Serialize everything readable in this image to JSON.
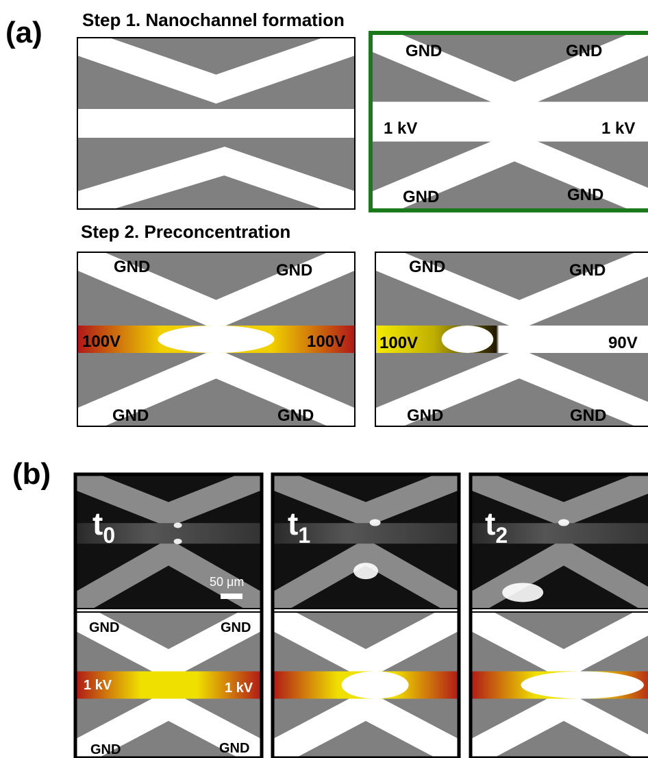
{
  "panel_a": {
    "label": "(a)",
    "step1": {
      "title": "Step 1. Nanochannel formation",
      "labels": [
        "GND",
        "GND",
        "1 kV",
        "1 kV",
        "GND",
        "GND"
      ]
    },
    "step2": {
      "title": "Step 2. Preconcentration",
      "left_labels": [
        "GND",
        "GND",
        "100V",
        "100V",
        "GND",
        "GND"
      ],
      "right_labels": [
        "GND",
        "GND",
        "100V",
        "90V",
        "GND",
        "GND"
      ]
    }
  },
  "panel_b": {
    "label": "(b)",
    "times": [
      {
        "t": "t",
        "sub": "0"
      },
      {
        "t": "t",
        "sub": "1"
      },
      {
        "t": "t",
        "sub": "2"
      }
    ],
    "scale_bar": "50 μm",
    "labels": [
      "GND",
      "GND",
      "1 kV",
      "1 kV",
      "GND",
      "GND"
    ]
  }
}
